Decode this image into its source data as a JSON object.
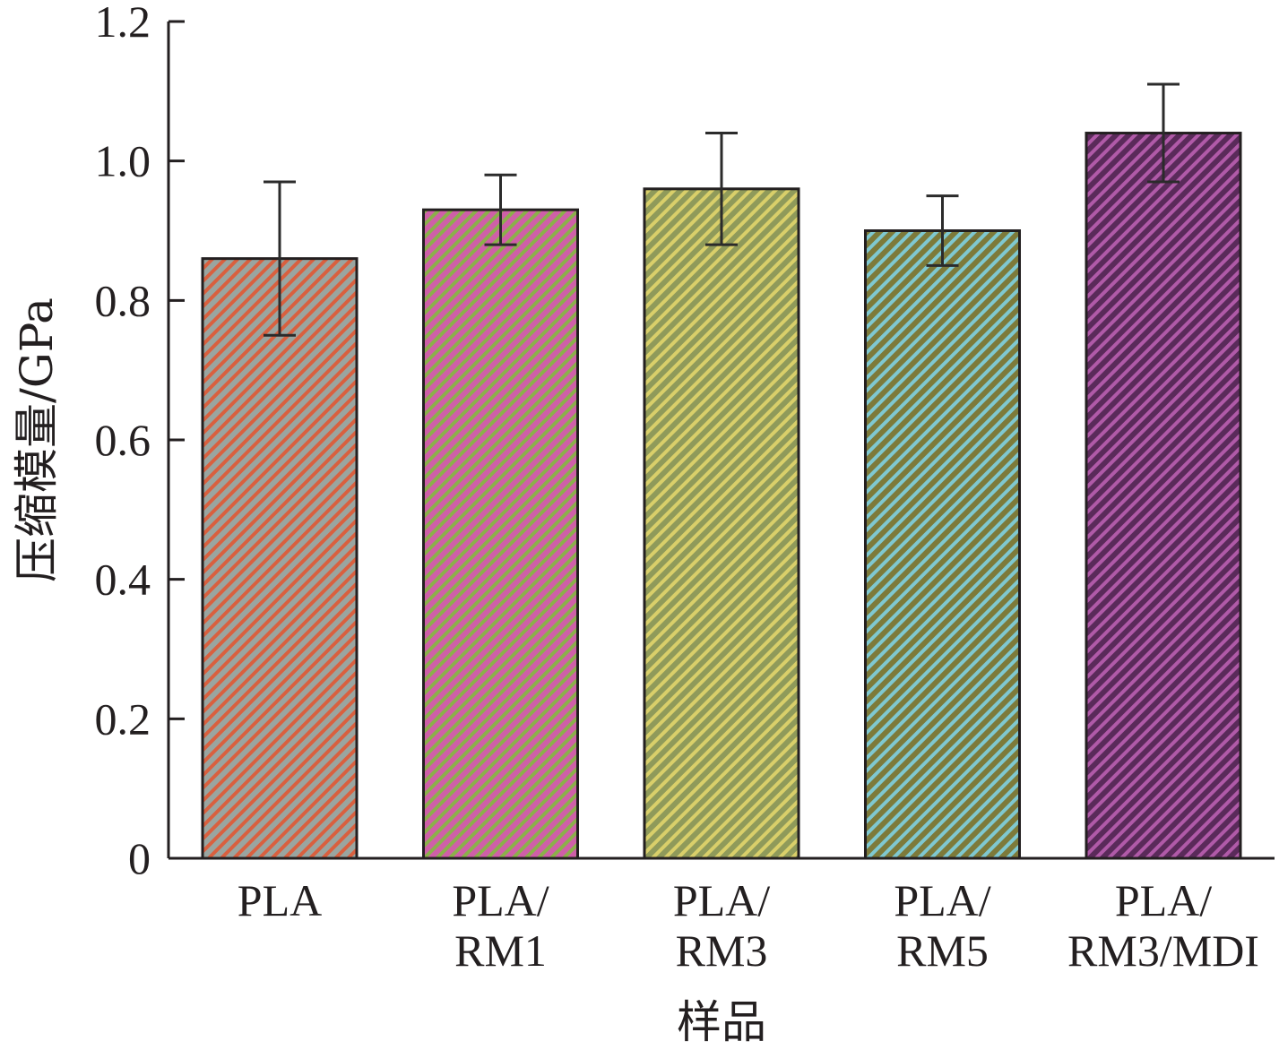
{
  "chart_data": {
    "type": "bar",
    "categories": [
      [
        "PLA"
      ],
      [
        "PLA/",
        "RM1"
      ],
      [
        "PLA/",
        "RM3"
      ],
      [
        "PLA/",
        "RM5"
      ],
      [
        "PLA/",
        "RM3/MDI"
      ]
    ],
    "values": [
      0.86,
      0.93,
      0.96,
      0.9,
      1.04
    ],
    "errors": [
      0.11,
      0.05,
      0.08,
      0.05,
      0.07
    ],
    "xlabel": "样品",
    "ylabel": "压缩模量/GPa",
    "ylim": [
      0,
      1.2
    ],
    "yticks": [
      "0",
      "0.2",
      "0.4",
      "0.6",
      "0.8",
      "1.0",
      "1.2"
    ],
    "grid": false,
    "bar_colors": [
      {
        "base": "#9aa5a0",
        "stripe": "#d9603f"
      },
      {
        "base": "#cf5fa8",
        "stripe": "#8bb04a"
      },
      {
        "base": "#8f9a5a",
        "stripe": "#d9cf6a"
      },
      {
        "base": "#7d7a3a",
        "stripe": "#7fc8d0"
      },
      {
        "base": "#5a2a5a",
        "stripe": "#b05aa8"
      }
    ]
  }
}
